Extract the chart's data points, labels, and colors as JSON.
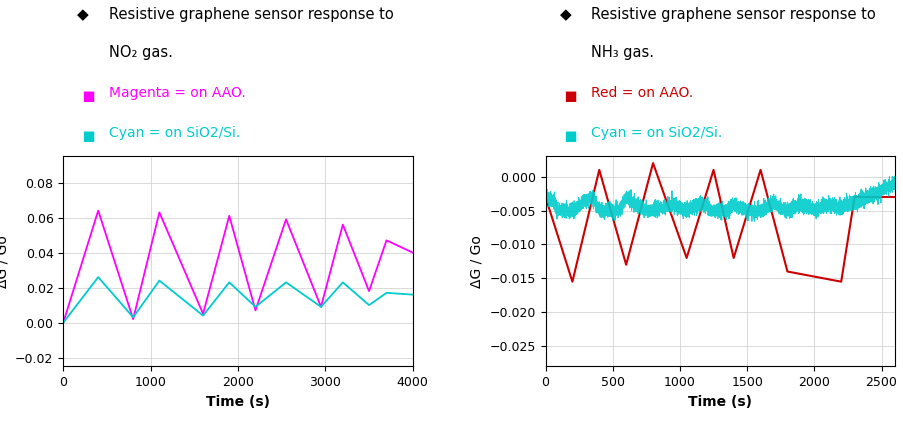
{
  "left": {
    "title_line1": "Resistive graphene sensor response to",
    "title_line2": "NO₂ gas.",
    "legend": [
      {
        "label": "Magenta = on AAO.",
        "color": "#FF00FF"
      },
      {
        "label": "Cyan = on SiO2/Si.",
        "color": "#00CCCC"
      }
    ],
    "xlabel": "Time (s)",
    "ylabel": "ΔG / Go",
    "xlim": [
      0,
      4000
    ],
    "ylim": [
      -0.025,
      0.095
    ],
    "yticks": [
      -0.02,
      0.0,
      0.02,
      0.04,
      0.06,
      0.08
    ],
    "xticks": [
      0,
      1000,
      2000,
      3000,
      4000
    ],
    "magenta_x": [
      0,
      400,
      800,
      1100,
      1600,
      1900,
      2200,
      2550,
      2950,
      3200,
      3500,
      3700,
      4000
    ],
    "magenta_y": [
      0.0,
      0.064,
      0.002,
      0.063,
      0.005,
      0.061,
      0.007,
      0.059,
      0.009,
      0.056,
      0.018,
      0.047,
      0.04
    ],
    "cyan_x": [
      0,
      400,
      800,
      1100,
      1600,
      1900,
      2200,
      2550,
      2950,
      3200,
      3500,
      3700,
      4000
    ],
    "cyan_y": [
      0.0,
      0.026,
      0.003,
      0.024,
      0.004,
      0.023,
      0.009,
      0.023,
      0.009,
      0.023,
      0.01,
      0.017,
      0.016
    ]
  },
  "right": {
    "title_line1": "Resistive graphene sensor response to",
    "title_line2": "NH₃ gas.",
    "legend": [
      {
        "label": "Red = on AAO.",
        "color": "#CC0000"
      },
      {
        "label": "Cyan = on SiO2/Si.",
        "color": "#00CCCC"
      }
    ],
    "xlabel": "Time (s)",
    "ylabel": "ΔG / Go",
    "xlim": [
      0,
      2600
    ],
    "ylim": [
      -0.028,
      0.003
    ],
    "yticks": [
      0.0,
      -0.005,
      -0.01,
      -0.015,
      -0.02,
      -0.025
    ],
    "xticks": [
      0,
      500,
      1000,
      1500,
      2000,
      2500
    ],
    "red_x": [
      0,
      200,
      400,
      600,
      800,
      1050,
      1250,
      1400,
      1600,
      1800,
      2200,
      2300,
      2600
    ],
    "red_y": [
      -0.003,
      -0.0155,
      0.001,
      -0.013,
      0.002,
      -0.012,
      0.001,
      -0.012,
      0.001,
      -0.014,
      -0.0155,
      -0.003,
      -0.003
    ]
  },
  "background_color": "#FFFFFF",
  "grid_color": "#CCCCCC",
  "title_fontsize": 10.5,
  "legend_fontsize": 10,
  "axis_fontsize": 10,
  "tick_fontsize": 9
}
